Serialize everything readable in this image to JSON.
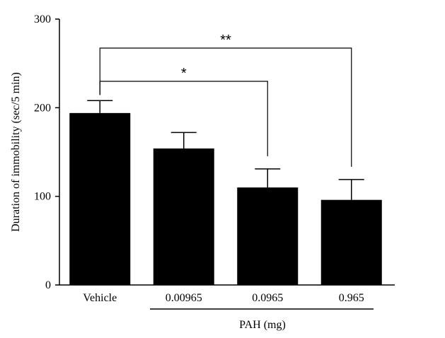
{
  "chart_data": {
    "type": "bar",
    "categories": [
      "Vehicle",
      "0.00965",
      "0.0965",
      "0.965"
    ],
    "values": [
      194,
      154,
      110,
      96
    ],
    "errors": [
      14,
      18,
      21,
      23
    ],
    "ylabel": "Duration of immobility (sec/5 min)",
    "xgroup_label": "PAH (mg)",
    "ylim": [
      0,
      300
    ],
    "yticks": [
      0,
      100,
      200,
      300
    ],
    "grid": false,
    "bar_color": "#000000",
    "significance": [
      {
        "from": 0,
        "to": 2,
        "label": "*"
      },
      {
        "from": 0,
        "to": 3,
        "label": "**"
      }
    ]
  }
}
